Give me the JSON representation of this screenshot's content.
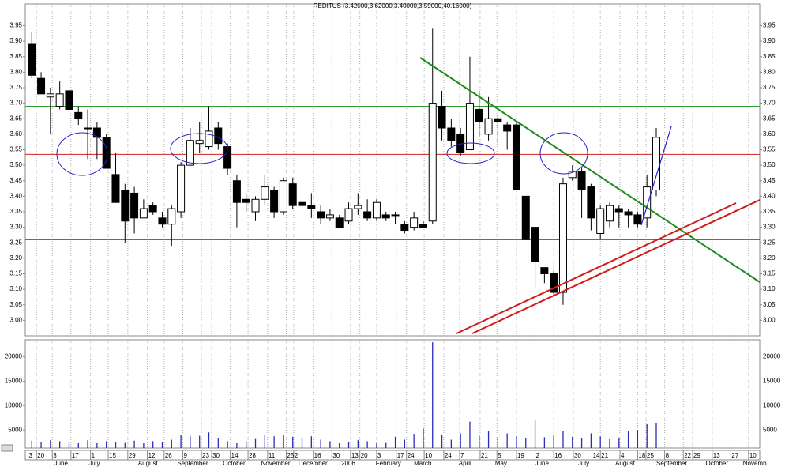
{
  "chart_data": {
    "type": "candlestick",
    "title": "REDITUS (3.42000,3.62000,3.40000,3.59000,40.16000)",
    "ylim": [
      2.95,
      4.02
    ],
    "yticks": [
      {
        "value": 3,
        "label": "3.00"
      },
      3.05,
      {
        "value": 3.1,
        "label": "3.10"
      },
      3.15,
      {
        "value": 3.2,
        "label": "3.20"
      },
      3.25,
      {
        "value": 3.3,
        "label": "3.30"
      },
      3.35,
      {
        "value": 3.4,
        "label": "3.40"
      },
      3.45,
      {
        "value": 3.5,
        "label": "3.50"
      },
      3.55,
      {
        "value": 3.6,
        "label": "3.60"
      },
      3.65,
      {
        "value": 3.7,
        "label": "3.70"
      },
      3.75,
      {
        "value": 3.8,
        "label": "3.80"
      },
      3.85,
      {
        "value": 3.9,
        "label": "3.90"
      },
      3.95
    ],
    "volume_ylim": [
      1300,
      23500
    ],
    "volume_yticks": [
      5000,
      10000,
      15000,
      20000
    ],
    "xlim": [
      -0.7,
      78.1
    ],
    "xticks": [
      {
        "value": -0.4,
        "label": "3"
      },
      {
        "value": 0.5,
        "label": "20"
      },
      {
        "value": 2.2,
        "label": "3"
      },
      {
        "value": 4.2,
        "label": "17"
      },
      {
        "value": 6.3,
        "label": "1"
      },
      {
        "value": 8.2,
        "label": "15"
      },
      {
        "value": 10.3,
        "label": "29"
      },
      {
        "value": 12.4,
        "label": "12"
      },
      {
        "value": 14.2,
        "label": "26"
      },
      {
        "value": 16.2,
        "label": "9"
      },
      {
        "value": 18.2,
        "label": "23"
      },
      {
        "value": 19.3,
        "label": "30"
      },
      {
        "value": 21.3,
        "label": "14"
      },
      {
        "value": 23.2,
        "label": "28"
      },
      {
        "value": 25.3,
        "label": "11"
      },
      {
        "value": 27.3,
        "label": "25"
      },
      {
        "value": 28.1,
        "label": "2"
      },
      {
        "value": 30.2,
        "label": "16"
      },
      {
        "value": 32.2,
        "label": "30"
      },
      {
        "value": 34.2,
        "label": "13"
      },
      {
        "value": 35.2,
        "label": "20"
      },
      {
        "value": 37.0,
        "label": "3"
      },
      {
        "value": 39.1,
        "label": "17"
      },
      {
        "value": 40.2,
        "label": "24"
      },
      {
        "value": 42.1,
        "label": "10"
      },
      {
        "value": 44.2,
        "label": "24"
      },
      {
        "value": 45.9,
        "label": "7"
      },
      {
        "value": 48.1,
        "label": "21"
      },
      {
        "value": 49.9,
        "label": "5"
      },
      {
        "value": 52.0,
        "label": "19"
      },
      {
        "value": 54.0,
        "label": "2"
      },
      {
        "value": 56.0,
        "label": "16"
      },
      {
        "value": 58.1,
        "label": "30"
      },
      {
        "value": 60.1,
        "label": "14"
      },
      {
        "value": 61.0,
        "label": "21"
      },
      {
        "value": 63.1,
        "label": "4"
      },
      {
        "value": 65.0,
        "label": "18"
      },
      {
        "value": 65.9,
        "label": "25"
      },
      {
        "value": 67.9,
        "label": "8"
      },
      {
        "value": 69.9,
        "label": "22"
      },
      {
        "value": 70.9,
        "label": "29"
      },
      {
        "value": 73.0,
        "label": "13"
      },
      {
        "value": 75.0,
        "label": "27"
      },
      {
        "value": 76.9,
        "label": "10"
      }
    ],
    "months": [
      {
        "value": 2.4,
        "label": "June"
      },
      {
        "value": 6.1,
        "label": "July"
      },
      {
        "value": 11.4,
        "label": "August"
      },
      {
        "value": 15.6,
        "label": "September"
      },
      {
        "value": 20.5,
        "label": "October"
      },
      {
        "value": 24.6,
        "label": "November"
      },
      {
        "value": 28.6,
        "label": "December"
      },
      {
        "value": 33.2,
        "label": "2006"
      },
      {
        "value": 36.9,
        "label": "February"
      },
      {
        "value": 41.0,
        "label": "March"
      },
      {
        "value": 45.8,
        "label": "April"
      },
      {
        "value": 49.7,
        "label": "May"
      },
      {
        "value": 54.0,
        "label": "June"
      },
      {
        "value": 58.6,
        "label": "July"
      },
      {
        "value": 62.6,
        "label": "August"
      },
      {
        "value": 67.0,
        "label": "September"
      },
      {
        "value": 72.3,
        "label": "October"
      },
      {
        "value": 76.3,
        "label": "Novemb"
      }
    ],
    "open": [
      3.89,
      3.78,
      3.72,
      3.69,
      3.74,
      3.67,
      3.62,
      3.62,
      3.59,
      3.47,
      3.42,
      3.41,
      3.33,
      3.37,
      3.33,
      3.31,
      3.35,
      3.5,
      3.57,
      3.56,
      3.62,
      3.56,
      3.45,
      3.39,
      3.35,
      3.39,
      3.42,
      3.35,
      3.44,
      3.38,
      3.37,
      3.35,
      3.33,
      3.33,
      3.32,
      3.36,
      3.35,
      3.33,
      3.34,
      3.34,
      3.31,
      3.3,
      3.31,
      3.32,
      3.69,
      3.62,
      3.6,
      3.55,
      3.68,
      3.6,
      3.65,
      3.63,
      3.63,
      3.4,
      3.3,
      3.17,
      3.15,
      3.09,
      3.46,
      3.48,
      3.43,
      3.28,
      3.32,
      3.36,
      3.35,
      3.34,
      3.33,
      3.42
    ],
    "high": [
      3.93,
      3.8,
      3.75,
      3.77,
      3.74,
      3.69,
      3.68,
      3.64,
      3.6,
      3.54,
      3.44,
      3.43,
      3.39,
      3.38,
      3.35,
      3.37,
      3.51,
      3.62,
      3.64,
      3.69,
      3.64,
      3.57,
      3.47,
      3.41,
      3.4,
      3.47,
      3.43,
      3.46,
      3.46,
      3.4,
      3.41,
      3.37,
      3.36,
      3.34,
      3.38,
      3.41,
      3.39,
      3.39,
      3.35,
      3.35,
      3.32,
      3.35,
      3.32,
      3.94,
      3.74,
      3.65,
      3.62,
      3.85,
      3.74,
      3.72,
      3.66,
      3.64,
      3.64,
      3.4,
      3.3,
      3.17,
      3.16,
      3.46,
      3.5,
      3.49,
      3.44,
      3.37,
      3.38,
      3.37,
      3.36,
      3.35,
      3.47,
      3.62
    ],
    "low": [
      3.78,
      3.73,
      3.6,
      3.68,
      3.67,
      3.63,
      3.52,
      3.52,
      3.49,
      3.38,
      3.25,
      3.28,
      3.33,
      3.34,
      3.3,
      3.24,
      3.33,
      3.5,
      3.54,
      3.55,
      3.55,
      3.47,
      3.3,
      3.35,
      3.32,
      3.37,
      3.33,
      3.34,
      3.36,
      3.35,
      3.33,
      3.31,
      3.32,
      3.3,
      3.31,
      3.34,
      3.32,
      3.32,
      3.32,
      3.31,
      3.28,
      3.29,
      3.3,
      3.31,
      3.58,
      3.56,
      3.53,
      3.55,
      3.59,
      3.58,
      3.57,
      3.55,
      3.42,
      3.26,
      3.1,
      3.12,
      3.08,
      3.05,
      3.45,
      3.33,
      3.29,
      3.26,
      3.3,
      3.3,
      3.3,
      3.3,
      3.3,
      3.4
    ],
    "close": [
      3.79,
      3.73,
      3.73,
      3.73,
      3.68,
      3.65,
      3.62,
      3.59,
      3.49,
      3.38,
      3.32,
      3.33,
      3.36,
      3.35,
      3.31,
      3.36,
      3.5,
      3.58,
      3.58,
      3.61,
      3.57,
      3.49,
      3.38,
      3.38,
      3.39,
      3.43,
      3.35,
      3.45,
      3.37,
      3.37,
      3.36,
      3.33,
      3.34,
      3.3,
      3.36,
      3.37,
      3.33,
      3.38,
      3.33,
      3.34,
      3.29,
      3.33,
      3.3,
      3.7,
      3.62,
      3.58,
      3.54,
      3.7,
      3.64,
      3.65,
      3.64,
      3.61,
      3.42,
      3.26,
      3.19,
      3.15,
      3.09,
      3.44,
      3.48,
      3.42,
      3.33,
      3.36,
      3.37,
      3.35,
      3.34,
      3.31,
      3.43,
      3.59
    ],
    "volume": [
      2800,
      2600,
      2900,
      2700,
      2500,
      2300,
      2900,
      2400,
      2700,
      2600,
      2500,
      2800,
      2400,
      2700,
      2600,
      3000,
      3900,
      3700,
      3800,
      4500,
      3400,
      2700,
      2400,
      2600,
      3300,
      4000,
      3700,
      3900,
      3600,
      3400,
      3700,
      3000,
      2700,
      2300,
      2600,
      2900,
      2700,
      2400,
      2500,
      3600,
      3000,
      4200,
      5300,
      23000,
      4000,
      3000,
      4300,
      6700,
      4000,
      4800,
      3500,
      4300,
      3700,
      3400,
      6900,
      3500,
      4000,
      4800,
      3600,
      3400,
      4300,
      3700,
      3200,
      3400,
      4700,
      5000,
      6300,
      6500
    ],
    "up_color": "#ffffff",
    "down_color": "#000000",
    "volume_color": "#2a2ab8",
    "hlines": [
      {
        "value": 3.69,
        "color": "#2e9e2e"
      },
      {
        "value": 3.535,
        "color": "#d22020"
      },
      {
        "value": 3.26,
        "color": "#d22020"
      }
    ]
  }
}
